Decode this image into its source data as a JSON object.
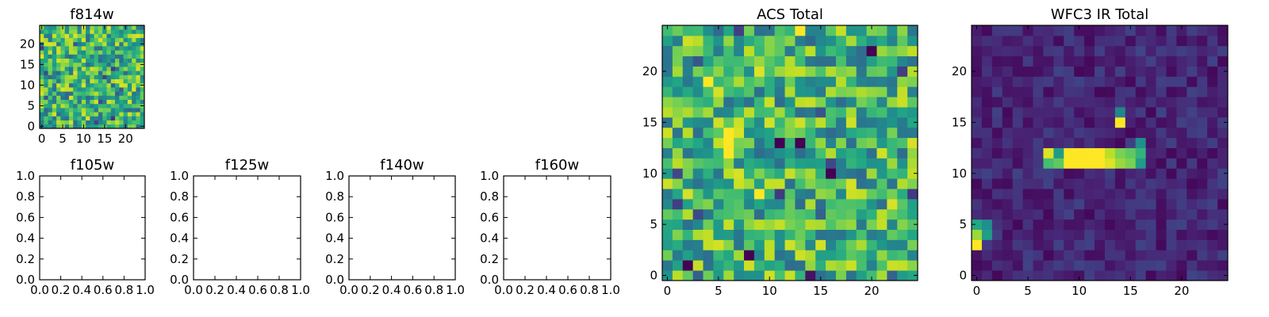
{
  "chart_data": [
    {
      "type": "heatmap",
      "title": "f814w",
      "xlim": [
        -0.5,
        24.5
      ],
      "ylim": [
        -0.5,
        24.5
      ],
      "xticks": [
        0,
        5,
        10,
        15,
        20
      ],
      "yticks": [
        0,
        5,
        10,
        15,
        20
      ],
      "grid_size": [
        25,
        25
      ],
      "colormap": "viridis",
      "seed": 11,
      "features": []
    },
    {
      "type": "scatter",
      "title": "f105w",
      "xlim": [
        0.0,
        1.0
      ],
      "ylim": [
        0.0,
        1.0
      ],
      "xticks": [
        "0.0",
        "0.2",
        "0.4",
        "0.6",
        "0.8",
        "1.0"
      ],
      "yticks": [
        "0.0",
        "0.2",
        "0.4",
        "0.6",
        "0.8",
        "1.0"
      ],
      "points": []
    },
    {
      "type": "scatter",
      "title": "f125w",
      "xlim": [
        0.0,
        1.0
      ],
      "ylim": [
        0.0,
        1.0
      ],
      "xticks": [
        "0.0",
        "0.2",
        "0.4",
        "0.6",
        "0.8",
        "1.0"
      ],
      "yticks": [
        "0.0",
        "0.2",
        "0.4",
        "0.6",
        "0.8",
        "1.0"
      ],
      "points": []
    },
    {
      "type": "scatter",
      "title": "f140w",
      "xlim": [
        0.0,
        1.0
      ],
      "ylim": [
        0.0,
        1.0
      ],
      "xticks": [
        "0.0",
        "0.2",
        "0.4",
        "0.6",
        "0.8",
        "1.0"
      ],
      "yticks": [
        "0.0",
        "0.2",
        "0.4",
        "0.6",
        "0.8",
        "1.0"
      ],
      "points": []
    },
    {
      "type": "scatter",
      "title": "f160w",
      "xlim": [
        0.0,
        1.0
      ],
      "ylim": [
        0.0,
        1.0
      ],
      "xticks": [
        "0.0",
        "0.2",
        "0.4",
        "0.6",
        "0.8",
        "1.0"
      ],
      "yticks": [
        "0.0",
        "0.2",
        "0.4",
        "0.6",
        "0.8",
        "1.0"
      ],
      "points": []
    },
    {
      "type": "heatmap",
      "title": "ACS Total",
      "xlim": [
        -0.5,
        24.5
      ],
      "ylim": [
        -0.5,
        24.5
      ],
      "xticks": [
        0,
        5,
        10,
        15,
        20
      ],
      "yticks": [
        0,
        5,
        10,
        15,
        20
      ],
      "grid_size": [
        25,
        25
      ],
      "colormap": "viridis",
      "seed": 29,
      "features": [
        {
          "x": 11,
          "y": 13,
          "value": 0.0
        },
        {
          "x": 13,
          "y": 13,
          "value": 0.0
        },
        {
          "x": 16,
          "y": 10,
          "value": 0.0
        },
        {
          "x": 8,
          "y": 2,
          "value": 0.0
        },
        {
          "x": 2,
          "y": 1,
          "value": 0.0
        },
        {
          "x": 14,
          "y": 0,
          "value": 0.05
        },
        {
          "x": 20,
          "y": 22,
          "value": 0.0
        },
        {
          "x": 4,
          "y": 19,
          "value": 1.0
        },
        {
          "x": 9,
          "y": 8,
          "value": 1.0
        },
        {
          "x": 6,
          "y": 14,
          "value": 1.0
        },
        {
          "x": 6,
          "y": 13,
          "value": 1.0
        },
        {
          "x": 6,
          "y": 12,
          "value": 1.0
        },
        {
          "x": 13,
          "y": 24,
          "value": 1.0
        }
      ]
    },
    {
      "type": "heatmap",
      "title": "WFC3 IR Total",
      "xlim": [
        -0.5,
        24.5
      ],
      "ylim": [
        -0.5,
        24.5
      ],
      "xticks": [
        0,
        5,
        10,
        15,
        20
      ],
      "yticks": [
        0,
        5,
        10,
        15,
        20
      ],
      "grid_size": [
        25,
        25
      ],
      "colormap": "viridis",
      "seed": 47,
      "features": [
        {
          "x": 14,
          "y": 15,
          "value": 1.0
        },
        {
          "x": 14,
          "y": 16,
          "value": 0.45
        },
        {
          "x": 7,
          "y": 12,
          "value": 0.95
        },
        {
          "x": 7,
          "y": 11,
          "value": 0.7
        },
        {
          "x": 8,
          "y": 12,
          "value": 0.55
        },
        {
          "x": 8,
          "y": 11,
          "value": 0.75
        },
        {
          "x": 9,
          "y": 12,
          "value": 1.0
        },
        {
          "x": 9,
          "y": 11,
          "value": 1.0
        },
        {
          "x": 10,
          "y": 12,
          "value": 1.0
        },
        {
          "x": 10,
          "y": 11,
          "value": 1.0
        },
        {
          "x": 11,
          "y": 12,
          "value": 1.0
        },
        {
          "x": 11,
          "y": 11,
          "value": 1.0
        },
        {
          "x": 12,
          "y": 12,
          "value": 1.0
        },
        {
          "x": 12,
          "y": 11,
          "value": 1.0
        },
        {
          "x": 13,
          "y": 12,
          "value": 0.9
        },
        {
          "x": 13,
          "y": 11,
          "value": 0.95
        },
        {
          "x": 14,
          "y": 12,
          "value": 0.8
        },
        {
          "x": 14,
          "y": 11,
          "value": 0.85
        },
        {
          "x": 15,
          "y": 12,
          "value": 0.75
        },
        {
          "x": 15,
          "y": 11,
          "value": 0.8
        },
        {
          "x": 16,
          "y": 13,
          "value": 0.5
        },
        {
          "x": 16,
          "y": 12,
          "value": 0.65
        },
        {
          "x": 16,
          "y": 11,
          "value": 0.55
        },
        {
          "x": 0,
          "y": 5,
          "value": 0.6
        },
        {
          "x": 0,
          "y": 4,
          "value": 0.85
        },
        {
          "x": 0,
          "y": 3,
          "value": 1.0
        },
        {
          "x": 1,
          "y": 5,
          "value": 0.5
        },
        {
          "x": 1,
          "y": 4,
          "value": 0.55
        }
      ]
    }
  ]
}
